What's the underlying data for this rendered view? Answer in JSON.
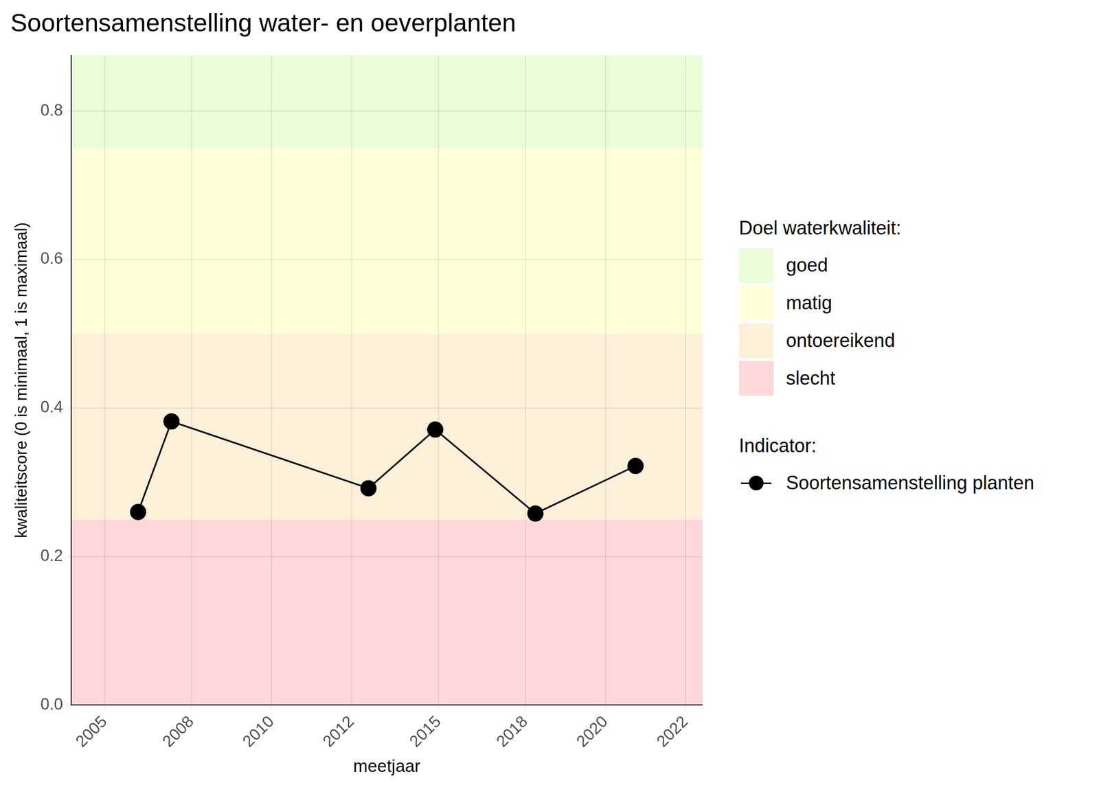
{
  "chart_data": {
    "type": "line",
    "title": "Soortensamenstelling water- en oeverplanten",
    "x_label": "meetjaar",
    "y_label": "kwaliteitscore (0 is minimaal, 1 is maximaal)",
    "x": [
      2006.0,
      2007.0,
      2012.9,
      2014.9,
      2017.9,
      2020.9
    ],
    "series": [
      {
        "name": "Soortensamenstelling planten",
        "color": "#000000",
        "marker": "circle",
        "line_style": "solid",
        "values": [
          0.26,
          0.382,
          0.292,
          0.371,
          0.258,
          0.322
        ]
      }
    ],
    "series_legend_title": "Indicator:",
    "bands": {
      "title": "Doel waterkwaliteit:",
      "items": [
        {
          "name": "goed",
          "color": "#e8fdd8",
          "from": 0.75,
          "to": 1
        },
        {
          "name": "matig",
          "color": "#fefed9",
          "from": 0.5,
          "to": 0.75
        },
        {
          "name": "ontoereikend",
          "color": "#fdf0d9",
          "from": 0.25,
          "to": 0.5
        },
        {
          "name": "slecht",
          "color": "#fdd7d9",
          "from": 0,
          "to": 0.25
        }
      ]
    },
    "xlim": [
      2004.0,
      2022.9
    ],
    "xticks": [
      {
        "value": 2005,
        "label": "2005"
      },
      {
        "value": 2007.6,
        "label": "2008"
      },
      {
        "value": 2010,
        "label": "2010"
      },
      {
        "value": 2012.4,
        "label": "2012"
      },
      {
        "value": 2015,
        "label": "2015"
      },
      {
        "value": 2017.6,
        "label": "2018"
      },
      {
        "value": 2020,
        "label": "2020"
      },
      {
        "value": 2022.4,
        "label": "2022"
      }
    ],
    "ylim": [
      0,
      0.875
    ],
    "yticks": [
      {
        "value": 0,
        "label": "0.0"
      },
      0.2,
      0.4,
      0.6,
      0.8
    ],
    "grid": true,
    "legend": "right"
  }
}
